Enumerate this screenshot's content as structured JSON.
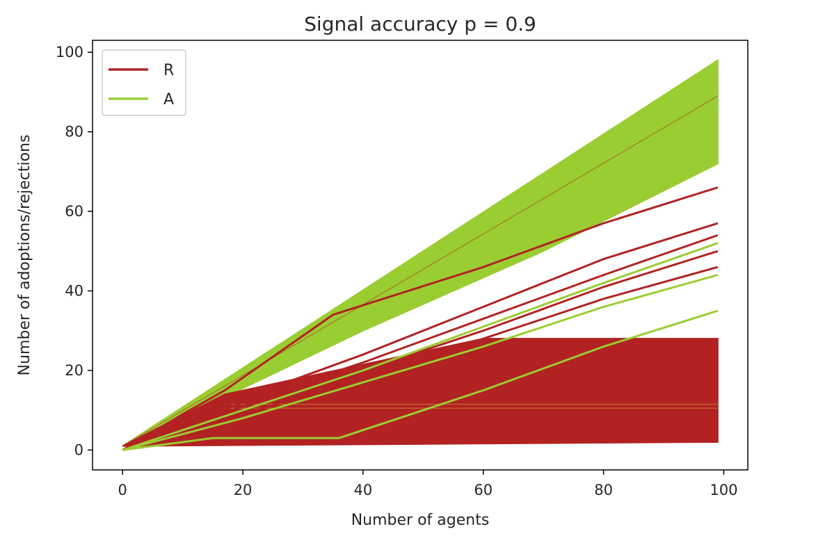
{
  "chart_data": {
    "type": "line",
    "title": "Signal accuracy p =  0.9",
    "xlabel": "Number of agents",
    "ylabel": "Number of adoptions/rejections",
    "xlim": [
      -5,
      104
    ],
    "ylim": [
      -5,
      103
    ],
    "xticks": [
      0,
      20,
      40,
      60,
      80,
      100
    ],
    "yticks": [
      0,
      20,
      40,
      60,
      80,
      100
    ],
    "grid": false,
    "legend": {
      "placement": "top-left",
      "entries": [
        {
          "label": "R",
          "color": "#b22222"
        },
        {
          "label": "A",
          "color": "#9acd32"
        }
      ]
    },
    "series": [
      {
        "name": "A",
        "color": "#9acd32",
        "description_values": {
          "upper_envelope": {
            "x": [
              0,
              99
            ],
            "y": [
              1,
              98
            ]
          },
          "lower_envelope": {
            "x": [
              0,
              40,
              70,
              99
            ],
            "y": [
              1,
              30,
              50,
              72
            ]
          }
        }
      },
      {
        "name": "R",
        "color": "#b22222",
        "description_values": {
          "upper_envelope": {
            "x": [
              0,
              17,
              60,
              99
            ],
            "y": [
              1,
              14,
              28,
              28
            ]
          },
          "lower_envelope": {
            "x": [
              0,
              99
            ],
            "y": [
              1,
              2
            ]
          }
        }
      }
    ],
    "highlight_lines": [
      {
        "name": "R",
        "color": "#b22222",
        "x": [
          0,
          10,
          17,
          35,
          60,
          80,
          99
        ],
        "y": [
          0,
          9,
          15,
          34,
          46,
          57,
          66
        ]
      },
      {
        "name": "R",
        "color": "#b22222",
        "x": [
          0,
          20,
          40,
          60,
          80,
          99
        ],
        "y": [
          0,
          13,
          24,
          36,
          48,
          57
        ]
      },
      {
        "name": "R",
        "color": "#b22222",
        "x": [
          0,
          20,
          40,
          60,
          80,
          99
        ],
        "y": [
          0,
          12,
          22,
          33,
          44,
          54
        ]
      },
      {
        "name": "R",
        "color": "#b22222",
        "x": [
          0,
          20,
          40,
          60,
          80,
          99
        ],
        "y": [
          0,
          11,
          20,
          30,
          41,
          50
        ]
      },
      {
        "name": "R",
        "color": "#b22222",
        "x": [
          0,
          20,
          40,
          60,
          80,
          99
        ],
        "y": [
          0,
          9,
          18,
          28,
          38,
          46
        ]
      },
      {
        "name": "A",
        "color": "#9acd32",
        "x": [
          0,
          20,
          40,
          60,
          80,
          99
        ],
        "y": [
          0,
          10,
          20,
          31,
          42,
          52
        ]
      },
      {
        "name": "A",
        "color": "#9acd32",
        "x": [
          0,
          20,
          40,
          60,
          80,
          99
        ],
        "y": [
          0,
          8,
          17,
          26,
          36,
          44
        ]
      },
      {
        "name": "A",
        "color": "#9acd32",
        "x": [
          0,
          15,
          36,
          60,
          80,
          99
        ],
        "y": [
          0,
          3,
          3,
          15,
          26,
          35
        ]
      },
      {
        "name": "R",
        "color": "#b22222",
        "x": [
          0,
          99
        ],
        "y": [
          1,
          89
        ]
      }
    ]
  }
}
